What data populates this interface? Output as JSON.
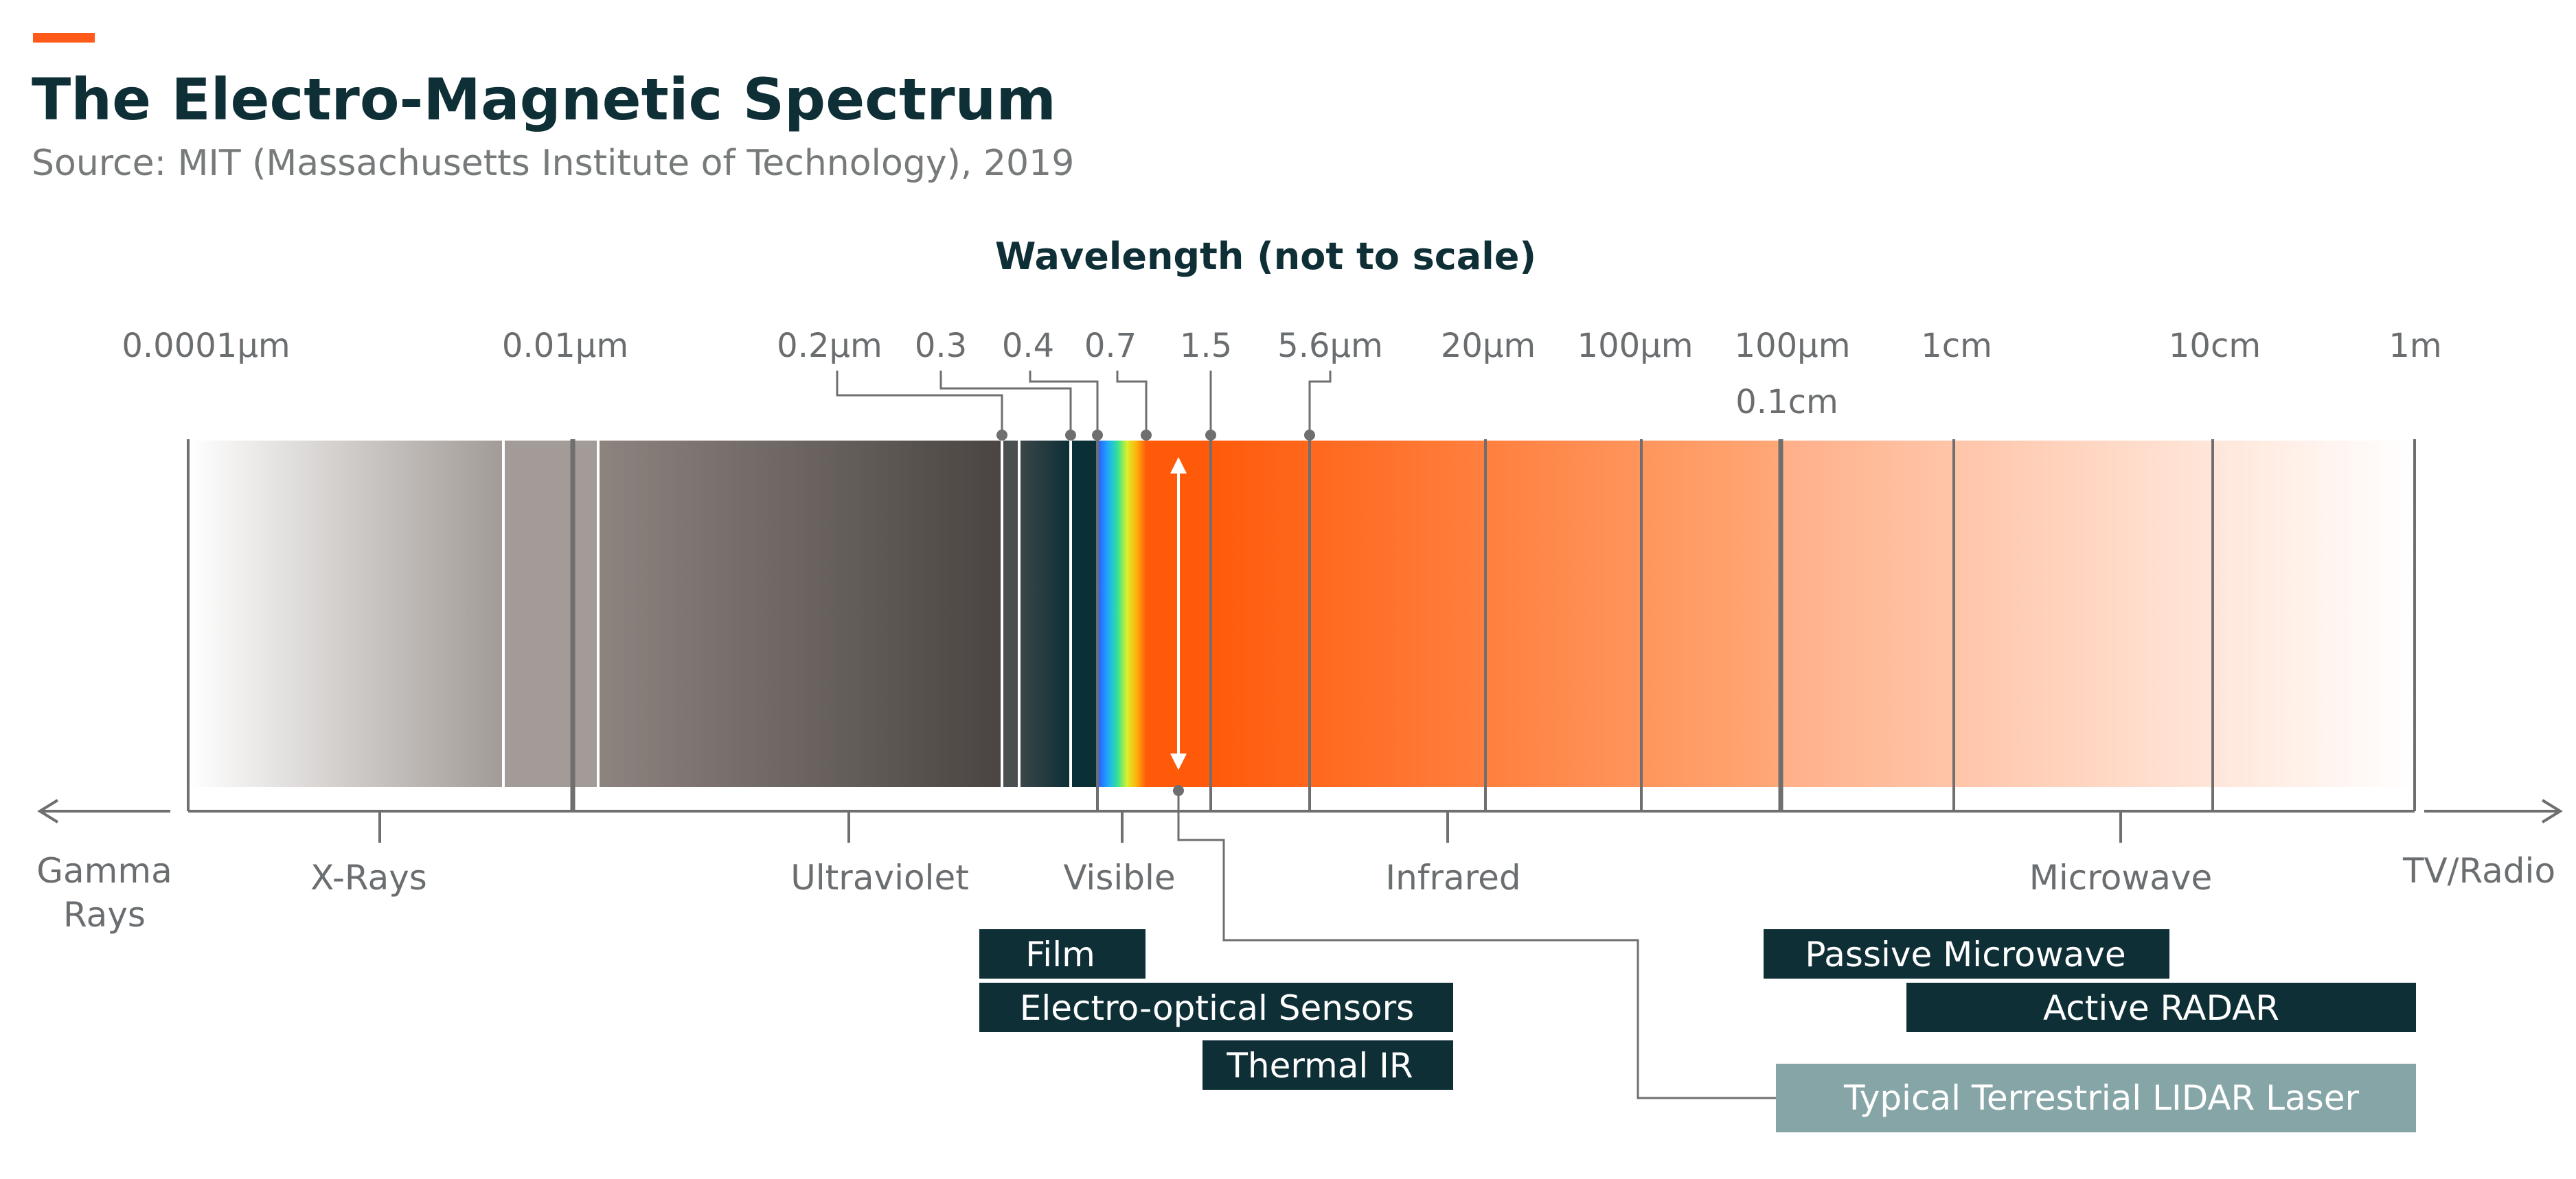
{
  "title": "The Electro-Magnetic Spectrum",
  "subtitle": "Source: MIT (Massachusetts Institute of Technology), 2019",
  "axis_title": "Wavelength (not to scale)",
  "wavelength_labels": [
    "0.0001µm",
    "0.01µm",
    "0.2µm",
    "0.3",
    "0.4",
    "0.7",
    "1.5",
    "5.6µm",
    "20µm",
    "100µm",
    "100µm",
    "0.1cm",
    "1cm",
    "10cm",
    "1m"
  ],
  "regions": [
    "Gamma Rays",
    "X-Rays",
    "Ultraviolet",
    "Visible",
    "Infrared",
    "Microwave",
    "TV/Radio"
  ],
  "sensors": [
    {
      "label": "Film"
    },
    {
      "label": "Electro-optical Sensors"
    },
    {
      "label": "Thermal IR"
    },
    {
      "label": "Passive Microwave"
    },
    {
      "label": "Active RADAR"
    },
    {
      "label": "Typical Terrestrial LIDAR Laser"
    }
  ],
  "colors": {
    "accent": "#ff5a1a",
    "dark_box": "#0f2f36",
    "lidar_box": "#86a5a7",
    "title": "#0f2f36",
    "gray_text": "#6b6e70",
    "laser": "#ff5a0a"
  }
}
